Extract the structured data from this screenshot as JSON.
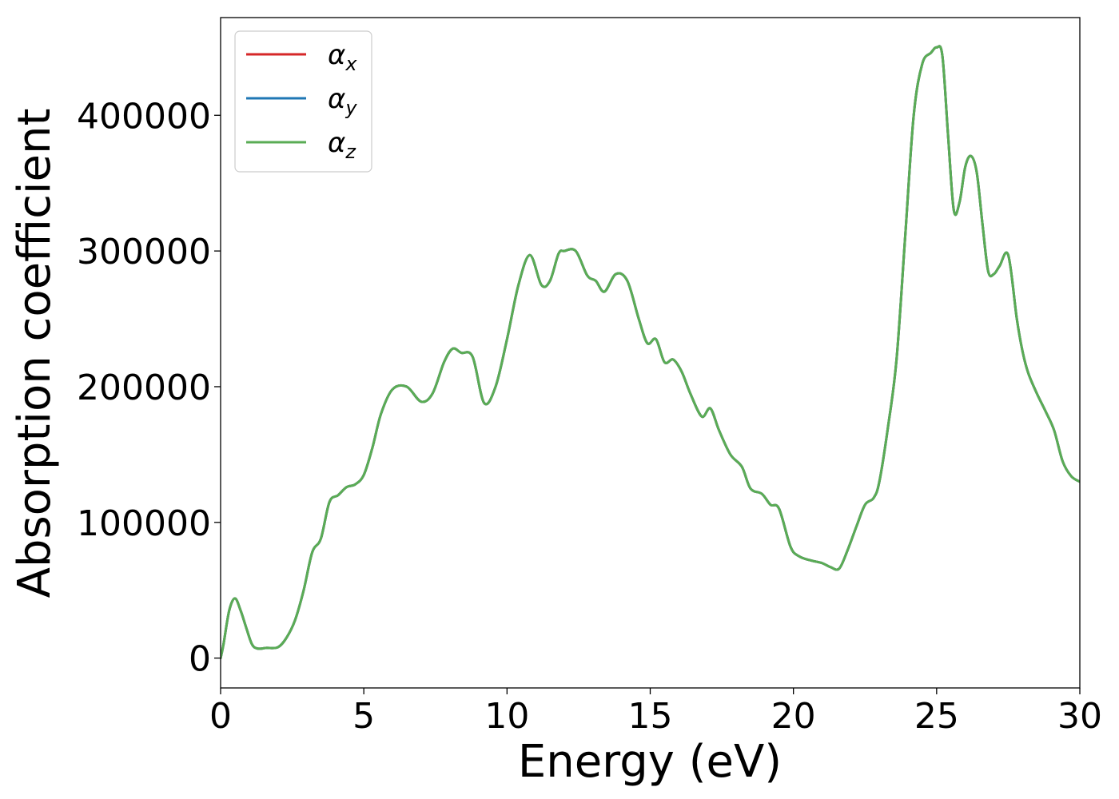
{
  "chart_data": {
    "type": "line",
    "xlabel": "Energy (eV)",
    "ylabel": "Absorption coefficient",
    "xlim": [
      0,
      30
    ],
    "ylim": [
      -22000,
      472000
    ],
    "xticks": [
      0,
      5,
      10,
      15,
      20,
      25,
      30
    ],
    "xtick_labels": [
      "0",
      "5",
      "10",
      "15",
      "20",
      "25",
      "30"
    ],
    "yticks": [
      0,
      100000,
      200000,
      300000,
      400000
    ],
    "ytick_labels": [
      "0",
      "100000",
      "200000",
      "300000",
      "400000"
    ],
    "grid": false,
    "legend_position": "top-left",
    "x": [
      0,
      0.1,
      0.3,
      0.5,
      0.7,
      0.9,
      1.1,
      1.3,
      1.6,
      2.0,
      2.3,
      2.6,
      2.9,
      3.2,
      3.5,
      3.8,
      4.1,
      4.4,
      4.7,
      5.0,
      5.3,
      5.6,
      6.0,
      6.5,
      7.0,
      7.4,
      7.8,
      8.1,
      8.4,
      8.8,
      9.2,
      9.6,
      10.0,
      10.4,
      10.8,
      11.2,
      11.5,
      11.8,
      12.0,
      12.4,
      12.8,
      13.1,
      13.4,
      13.8,
      14.2,
      14.6,
      14.9,
      15.2,
      15.5,
      15.8,
      16.1,
      16.4,
      16.8,
      17.1,
      17.4,
      17.8,
      18.2,
      18.5,
      18.9,
      19.2,
      19.5,
      19.9,
      20.2,
      20.6,
      21.0,
      21.3,
      21.6,
      21.9,
      22.2,
      22.5,
      22.8,
      23.0,
      23.3,
      23.6,
      23.9,
      24.2,
      24.5,
      24.8,
      25.0,
      25.2,
      25.4,
      25.6,
      25.8,
      26.0,
      26.2,
      26.4,
      26.6,
      26.8,
      27.0,
      27.2,
      27.5,
      27.8,
      28.0,
      28.2,
      28.5,
      28.8,
      29.1,
      29.4,
      29.7,
      30.0
    ],
    "series": [
      {
        "name": "α_x",
        "color": "#d62728",
        "values": [
          0,
          10000,
          35000,
          44000,
          35000,
          22000,
          10000,
          7000,
          7500,
          8000,
          15000,
          28000,
          50000,
          78000,
          88000,
          115000,
          120000,
          126000,
          128000,
          135000,
          155000,
          180000,
          198000,
          200000,
          189000,
          195000,
          218000,
          228000,
          225000,
          222000,
          188000,
          200000,
          235000,
          275000,
          297000,
          275000,
          278000,
          298000,
          300000,
          300000,
          282000,
          278000,
          270000,
          283000,
          278000,
          250000,
          232000,
          235000,
          218000,
          220000,
          211000,
          195000,
          178000,
          184000,
          168000,
          150000,
          141000,
          125000,
          121000,
          113000,
          110000,
          82000,
          75000,
          72000,
          70000,
          67000,
          66000,
          80000,
          97000,
          113000,
          118000,
          130000,
          170000,
          220000,
          310000,
          400000,
          438000,
          446000,
          450000,
          444000,
          385000,
          330000,
          336000,
          362000,
          370000,
          358000,
          320000,
          285000,
          283000,
          289000,
          297000,
          250000,
          226000,
          210000,
          195000,
          182000,
          168000,
          145000,
          134000,
          130000
        ]
      },
      {
        "name": "α_y",
        "color": "#1f77b4",
        "values": [
          0,
          10000,
          35000,
          44000,
          35000,
          22000,
          10000,
          7000,
          7500,
          8000,
          15000,
          28000,
          50000,
          78000,
          88000,
          115000,
          120000,
          126000,
          128000,
          135000,
          155000,
          180000,
          198000,
          200000,
          189000,
          195000,
          218000,
          228000,
          225000,
          222000,
          188000,
          200000,
          235000,
          275000,
          297000,
          275000,
          278000,
          298000,
          300000,
          300000,
          282000,
          278000,
          270000,
          283000,
          278000,
          250000,
          232000,
          235000,
          218000,
          220000,
          211000,
          195000,
          178000,
          184000,
          168000,
          150000,
          141000,
          125000,
          121000,
          113000,
          110000,
          82000,
          75000,
          72000,
          70000,
          67000,
          66000,
          80000,
          97000,
          113000,
          118000,
          130000,
          170000,
          220000,
          310000,
          400000,
          438000,
          446000,
          450000,
          444000,
          385000,
          330000,
          336000,
          362000,
          370000,
          358000,
          320000,
          285000,
          283000,
          289000,
          297000,
          250000,
          226000,
          210000,
          195000,
          182000,
          168000,
          145000,
          134000,
          130000
        ]
      },
      {
        "name": "α_z",
        "color": "#5aac55",
        "values": [
          0,
          10000,
          35000,
          44000,
          35000,
          22000,
          10000,
          7000,
          7500,
          8000,
          15000,
          28000,
          50000,
          78000,
          88000,
          115000,
          120000,
          126000,
          128000,
          135000,
          155000,
          180000,
          198000,
          200000,
          189000,
          195000,
          218000,
          228000,
          225000,
          222000,
          188000,
          200000,
          235000,
          275000,
          297000,
          275000,
          278000,
          298000,
          300000,
          300000,
          282000,
          278000,
          270000,
          283000,
          278000,
          250000,
          232000,
          235000,
          218000,
          220000,
          211000,
          195000,
          178000,
          184000,
          168000,
          150000,
          141000,
          125000,
          121000,
          113000,
          110000,
          82000,
          75000,
          72000,
          70000,
          67000,
          66000,
          80000,
          97000,
          113000,
          118000,
          130000,
          170000,
          220000,
          310000,
          400000,
          438000,
          446000,
          450000,
          444000,
          385000,
          330000,
          336000,
          362000,
          370000,
          358000,
          320000,
          285000,
          283000,
          289000,
          297000,
          250000,
          226000,
          210000,
          195000,
          182000,
          168000,
          145000,
          134000,
          130000
        ]
      }
    ],
    "legend": [
      {
        "symbol": "α",
        "sub": "x",
        "color": "#d62728"
      },
      {
        "symbol": "α",
        "sub": "y",
        "color": "#1f77b4"
      },
      {
        "symbol": "α",
        "sub": "z",
        "color": "#5aac55"
      }
    ]
  }
}
